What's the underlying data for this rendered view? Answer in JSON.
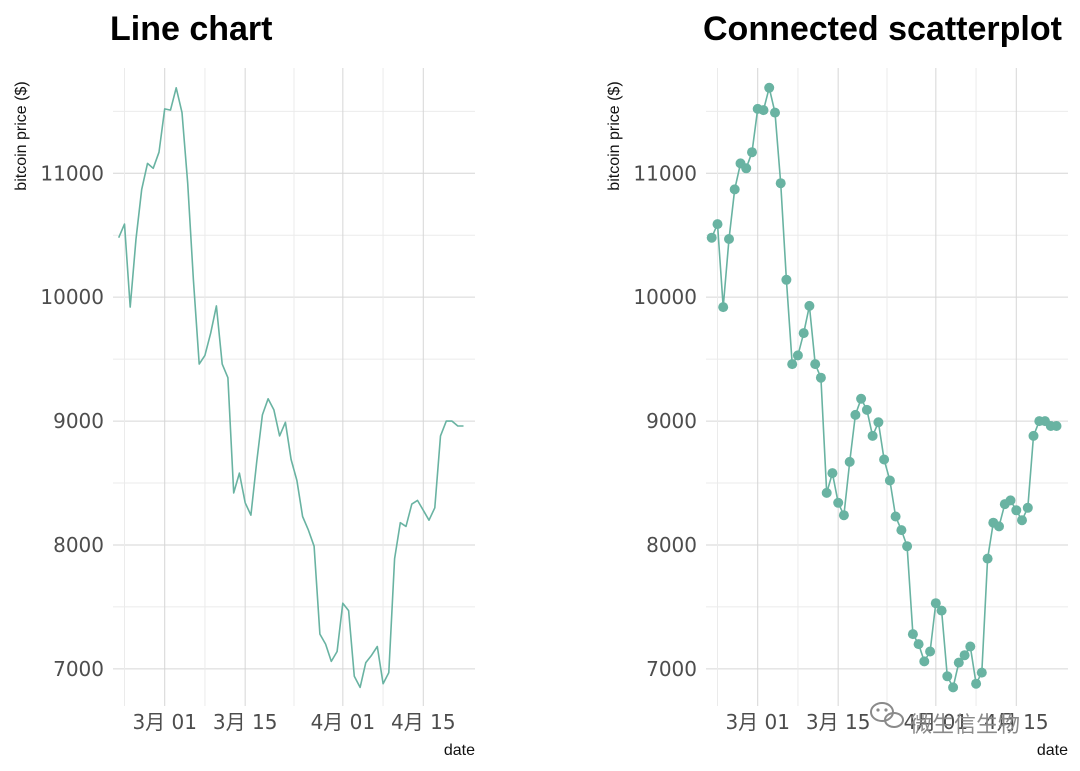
{
  "charts": [
    {
      "title": "Line chart",
      "ylabel": "bitcoin price ($)",
      "xlabel": "date",
      "y_ticks": [
        "7000",
        "8000",
        "9000",
        "10000",
        "11000"
      ],
      "x_ticks": [
        "3月 01",
        "3月 15",
        "4月 01",
        "4月 15"
      ]
    },
    {
      "title": "Connected scatterplot",
      "ylabel": "bitcoin price ($)",
      "xlabel": "date",
      "y_ticks": [
        "7000",
        "8000",
        "9000",
        "10000",
        "11000"
      ],
      "x_ticks": [
        "3月 01",
        "3月 15",
        "4月 01",
        "4月 15"
      ]
    }
  ],
  "watermark": "微生信生物",
  "colors": {
    "series": "#69b3a2",
    "grid": "#d6d6d6"
  },
  "chart_data": [
    {
      "type": "line",
      "title": "Line chart",
      "xlabel": "date",
      "ylabel": "bitcoin price ($)",
      "x_ticks": [
        "3月 01",
        "3月 15",
        "4月 01",
        "4月 15"
      ],
      "y_ticks": [
        7000,
        8000,
        9000,
        10000,
        11000
      ],
      "xlim": [
        "2018-02-20",
        "2018-04-24"
      ],
      "ylim": [
        6700,
        11850
      ],
      "grid": true,
      "series": [
        {
          "x": [
            "2018-02-21",
            "2018-02-22",
            "2018-02-23",
            "2018-02-24",
            "2018-02-25",
            "2018-02-26",
            "2018-02-27",
            "2018-02-28",
            "2018-03-01",
            "2018-03-02",
            "2018-03-03",
            "2018-03-04",
            "2018-03-05",
            "2018-03-06",
            "2018-03-07",
            "2018-03-08",
            "2018-03-09",
            "2018-03-10",
            "2018-03-11",
            "2018-03-12",
            "2018-03-13",
            "2018-03-14",
            "2018-03-15",
            "2018-03-16",
            "2018-03-17",
            "2018-03-18",
            "2018-03-19",
            "2018-03-20",
            "2018-03-21",
            "2018-03-22",
            "2018-03-23",
            "2018-03-24",
            "2018-03-25",
            "2018-03-26",
            "2018-03-27",
            "2018-03-28",
            "2018-03-29",
            "2018-03-30",
            "2018-03-31",
            "2018-04-01",
            "2018-04-02",
            "2018-04-03",
            "2018-04-04",
            "2018-04-05",
            "2018-04-06",
            "2018-04-07",
            "2018-04-08",
            "2018-04-09",
            "2018-04-10",
            "2018-04-11",
            "2018-04-12",
            "2018-04-13",
            "2018-04-14",
            "2018-04-15",
            "2018-04-16",
            "2018-04-17",
            "2018-04-18",
            "2018-04-19",
            "2018-04-20",
            "2018-04-21",
            "2018-04-22"
          ],
          "y": [
            10480,
            10590,
            9920,
            10470,
            10870,
            11080,
            11040,
            11170,
            11520,
            11510,
            11690,
            11490,
            10920,
            10140,
            9460,
            9530,
            9710,
            9930,
            9460,
            9350,
            8420,
            8580,
            8340,
            8240,
            8670,
            9050,
            9180,
            9090,
            8880,
            8990,
            8690,
            8520,
            8230,
            8120,
            7990,
            7280,
            7200,
            7060,
            7140,
            7530,
            7470,
            6940,
            6850,
            7050,
            7110,
            7180,
            6880,
            6970,
            7890,
            8180,
            8150,
            8330,
            8360,
            8280,
            8200,
            8300,
            8880,
            9000,
            9000,
            8960,
            8960
          ]
        }
      ]
    },
    {
      "type": "scatter",
      "title": "Connected scatterplot",
      "xlabel": "date",
      "ylabel": "bitcoin price ($)",
      "x_ticks": [
        "3月 01",
        "3月 15",
        "4月 01",
        "4月 15"
      ],
      "y_ticks": [
        7000,
        8000,
        9000,
        10000,
        11000
      ],
      "xlim": [
        "2018-02-20",
        "2018-04-24"
      ],
      "ylim": [
        6700,
        11850
      ],
      "grid": true,
      "series": [
        {
          "x": [
            "2018-02-21",
            "2018-02-22",
            "2018-02-23",
            "2018-02-24",
            "2018-02-25",
            "2018-02-26",
            "2018-02-27",
            "2018-02-28",
            "2018-03-01",
            "2018-03-02",
            "2018-03-03",
            "2018-03-04",
            "2018-03-05",
            "2018-03-06",
            "2018-03-07",
            "2018-03-08",
            "2018-03-09",
            "2018-03-10",
            "2018-03-11",
            "2018-03-12",
            "2018-03-13",
            "2018-03-14",
            "2018-03-15",
            "2018-03-16",
            "2018-03-17",
            "2018-03-18",
            "2018-03-19",
            "2018-03-20",
            "2018-03-21",
            "2018-03-22",
            "2018-03-23",
            "2018-03-24",
            "2018-03-25",
            "2018-03-26",
            "2018-03-27",
            "2018-03-28",
            "2018-03-29",
            "2018-03-30",
            "2018-03-31",
            "2018-04-01",
            "2018-04-02",
            "2018-04-03",
            "2018-04-04",
            "2018-04-05",
            "2018-04-06",
            "2018-04-07",
            "2018-04-08",
            "2018-04-09",
            "2018-04-10",
            "2018-04-11",
            "2018-04-12",
            "2018-04-13",
            "2018-04-14",
            "2018-04-15",
            "2018-04-16",
            "2018-04-17",
            "2018-04-18",
            "2018-04-19",
            "2018-04-20",
            "2018-04-21",
            "2018-04-22"
          ],
          "y": [
            10480,
            10590,
            9920,
            10470,
            10870,
            11080,
            11040,
            11170,
            11520,
            11510,
            11690,
            11490,
            10920,
            10140,
            9460,
            9530,
            9710,
            9930,
            9460,
            9350,
            8420,
            8580,
            8340,
            8240,
            8670,
            9050,
            9180,
            9090,
            8880,
            8990,
            8690,
            8520,
            8230,
            8120,
            7990,
            7280,
            7200,
            7060,
            7140,
            7530,
            7470,
            6940,
            6850,
            7050,
            7110,
            7180,
            6880,
            6970,
            7890,
            8180,
            8150,
            8330,
            8360,
            8280,
            8200,
            8300,
            8880,
            9000,
            9000,
            8960,
            8960
          ]
        }
      ]
    }
  ]
}
